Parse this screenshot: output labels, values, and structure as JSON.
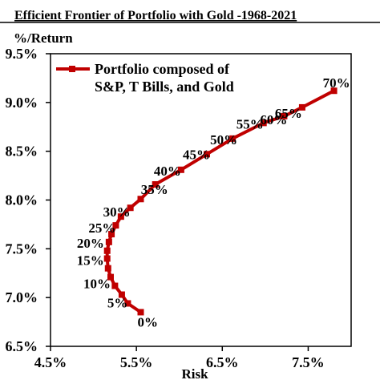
{
  "chart_data": {
    "type": "line",
    "title": "Efficient Frontier of Portfolio with Gold -1968-2021",
    "xlabel": "Risk",
    "ylabel": "%/Return",
    "xlim": [
      4.5,
      8.0
    ],
    "ylim": [
      6.5,
      9.5
    ],
    "x_ticks": [
      "4.5%",
      "5.5%",
      "6.5%",
      "7.5%"
    ],
    "x_tick_values": [
      4.5,
      5.5,
      6.5,
      7.5
    ],
    "y_ticks": [
      "6.5%",
      "7.0%",
      "7.5%",
      "8.0%",
      "8.5%",
      "9.0%",
      "9.5%"
    ],
    "y_tick_values": [
      6.5,
      7.0,
      7.5,
      8.0,
      8.5,
      9.0,
      9.5
    ],
    "grid": false,
    "legend_position": "top-left",
    "series": [
      {
        "name": "Portfolio composed of S&P, T Bills, and Gold",
        "legend_lines": [
          "Portfolio composed of",
          "S&P, T Bills, and Gold"
        ],
        "color": "#c00000",
        "marker": "square",
        "points": [
          {
            "x": 5.55,
            "y": 6.85,
            "label": "0%"
          },
          {
            "x": 5.4,
            "y": 6.94,
            "label": ""
          },
          {
            "x": 5.33,
            "y": 7.03,
            "label": "5%"
          },
          {
            "x": 5.25,
            "y": 7.12,
            "label": ""
          },
          {
            "x": 5.2,
            "y": 7.21,
            "label": "10%"
          },
          {
            "x": 5.17,
            "y": 7.3,
            "label": ""
          },
          {
            "x": 5.16,
            "y": 7.4,
            "label": "15%"
          },
          {
            "x": 5.16,
            "y": 7.48,
            "label": ""
          },
          {
            "x": 5.18,
            "y": 7.57,
            "label": "20%"
          },
          {
            "x": 5.21,
            "y": 7.65,
            "label": ""
          },
          {
            "x": 5.26,
            "y": 7.74,
            "label": "25%"
          },
          {
            "x": 5.32,
            "y": 7.83,
            "label": ""
          },
          {
            "x": 5.43,
            "y": 7.92,
            "label": "30%"
          },
          {
            "x": 5.55,
            "y": 8.01,
            "label": ""
          },
          {
            "x": 5.72,
            "y": 8.16,
            "label": "35%"
          },
          {
            "x": 6.02,
            "y": 8.31,
            "label": "40%"
          },
          {
            "x": 6.32,
            "y": 8.47,
            "label": "45%"
          },
          {
            "x": 6.62,
            "y": 8.63,
            "label": "50%"
          },
          {
            "x": 6.98,
            "y": 8.79,
            "label": "55%"
          },
          {
            "x": 7.22,
            "y": 8.86,
            "label": "60%"
          },
          {
            "x": 7.43,
            "y": 8.95,
            "label": "65%"
          },
          {
            "x": 7.8,
            "y": 9.12,
            "label": "70%"
          }
        ]
      }
    ]
  }
}
